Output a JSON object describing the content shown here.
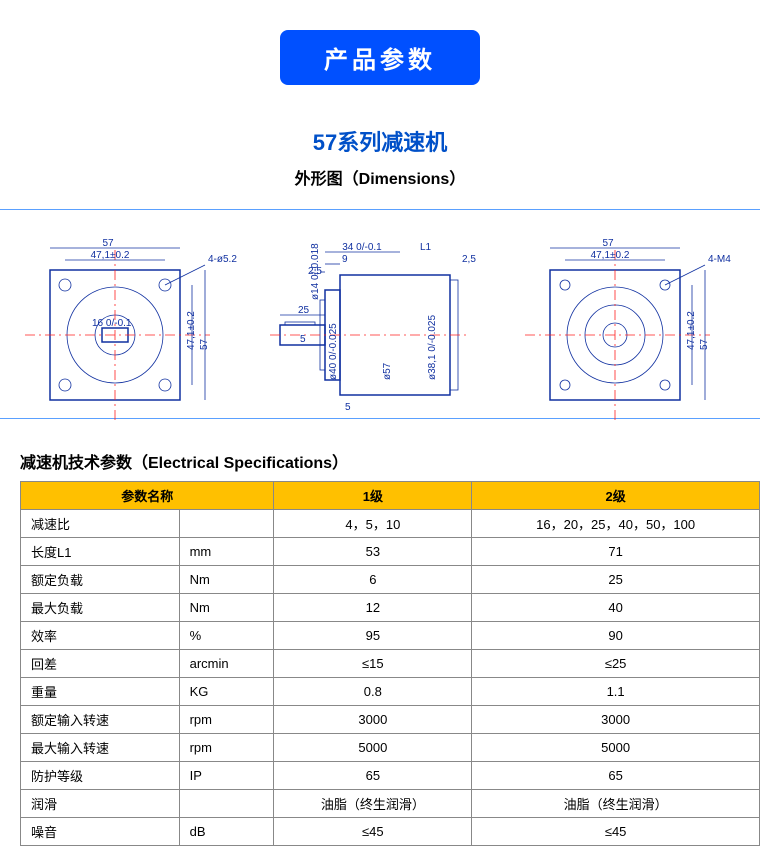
{
  "header": {
    "badge": "产品参数"
  },
  "series": {
    "title": "57系列减速机",
    "subtitle": "外形图（Dimensions）"
  },
  "drawing": {
    "colors": {
      "line": "#1030a0",
      "center": "#ff2020",
      "guide": "#5aa0ff"
    },
    "front_left": {
      "dims": [
        "57",
        "47,1±0.2",
        "4-ø5.2",
        "16 0/-0.1",
        "47,1±0.2",
        "57"
      ]
    },
    "side": {
      "dims": [
        "34 0/-0.1",
        "9",
        "L1",
        "2,5",
        "2,5",
        "25",
        "5",
        "ø14 0/-0.018",
        "ø40 0/-0.025",
        "ø57",
        "ø38,1 0/-0.025",
        "5"
      ]
    },
    "front_right": {
      "dims": [
        "57",
        "47,1±0.2",
        "4-M4",
        "47,1±0.2",
        "57"
      ]
    }
  },
  "spec_title": "减速机技术参数（Electrical Specifications）",
  "table": {
    "header_bg": "#ffc000",
    "border_color": "#888888",
    "headers": [
      "参数名称",
      "1级",
      "2级"
    ],
    "rows": [
      {
        "label": "减速比",
        "unit": "",
        "l1": "4，5，10",
        "l2": "16，20，25，40，50，100"
      },
      {
        "label": "长度L1",
        "unit": "mm",
        "l1": "53",
        "l2": "71"
      },
      {
        "label": "额定负载",
        "unit": "Nm",
        "l1": "6",
        "l2": "25"
      },
      {
        "label": "最大负载",
        "unit": "Nm",
        "l1": "12",
        "l2": "40"
      },
      {
        "label": "效率",
        "unit": "%",
        "l1": "95",
        "l2": "90"
      },
      {
        "label": "回差",
        "unit": "arcmin",
        "l1": "≤15",
        "l2": "≤25"
      },
      {
        "label": "重量",
        "unit": "KG",
        "l1": "0.8",
        "l2": "1.1"
      },
      {
        "label": "额定输入转速",
        "unit": "rpm",
        "l1": "3000",
        "l2": "3000"
      },
      {
        "label": "最大输入转速",
        "unit": "rpm",
        "l1": "5000",
        "l2": "5000"
      },
      {
        "label": "防护等级",
        "unit": "IP",
        "l1": "65",
        "l2": "65"
      },
      {
        "label": "润滑",
        "unit": "",
        "l1": "油脂（终生润滑）",
        "l2": "油脂（终生润滑）"
      },
      {
        "label": "噪音",
        "unit": "dB",
        "l1": "≤45",
        "l2": "≤45"
      }
    ]
  }
}
